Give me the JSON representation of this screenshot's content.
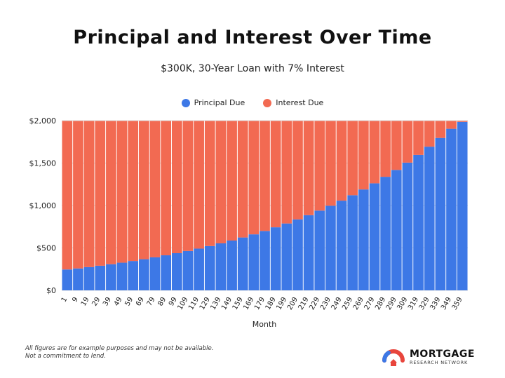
{
  "title": "Principal and Interest Over Time",
  "subtitle": "$300K, 30-Year Loan with 7% Interest",
  "footnote": {
    "line1": "All figures are for example purposes and may not be available.",
    "line2": "Not a commitment to lend."
  },
  "logo": {
    "main": "MORTGAGE",
    "sub": "RESEARCH NETWORK"
  },
  "colors": {
    "principal": "#3d78e6",
    "interest": "#f26a52",
    "grid": "#d8d8d8"
  },
  "chart_data": {
    "type": "bar",
    "stacked": true,
    "title": "Principal and Interest Over Time",
    "subtitle": "$300K, 30-Year Loan with 7% Interest",
    "xlabel": "Month",
    "ylabel": "",
    "ylim": [
      0,
      2000
    ],
    "y_ticks": [
      "$0",
      "$500",
      "$1,000",
      "$1,500",
      "$2,000"
    ],
    "y_tick_values": [
      0,
      500,
      1000,
      1500,
      2000
    ],
    "x_tick_labels": [
      "1",
      "9",
      "19",
      "29",
      "39",
      "49",
      "59",
      "69",
      "79",
      "89",
      "99",
      "109",
      "119",
      "129",
      "139",
      "149",
      "159",
      "169",
      "179",
      "189",
      "199",
      "209",
      "219",
      "229",
      "239",
      "249",
      "259",
      "269",
      "279",
      "289",
      "299",
      "309",
      "319",
      "329",
      "339",
      "349",
      "359"
    ],
    "legend_position": "top-center",
    "categories": [
      "1",
      "9",
      "19",
      "29",
      "39",
      "49",
      "59",
      "69",
      "79",
      "89",
      "99",
      "109",
      "119",
      "129",
      "139",
      "149",
      "159",
      "169",
      "179",
      "189",
      "199",
      "209",
      "219",
      "229",
      "239",
      "249",
      "259",
      "269",
      "279",
      "289",
      "299",
      "309",
      "319",
      "329",
      "339",
      "349",
      "359"
    ],
    "series": [
      {
        "name": "Principal Due",
        "values": [
          246,
          258,
          274,
          290,
          308,
          326,
          346,
          367,
          389,
          413,
          438,
          464,
          492,
          522,
          554,
          587,
          623,
          660,
          700,
          743,
          788,
          836,
          886,
          940,
          997,
          1057,
          1121,
          1189,
          1261,
          1338,
          1419,
          1505,
          1596,
          1693,
          1796,
          1904,
          1985
        ]
      },
      {
        "name": "Interest Due",
        "values": [
          1750,
          1738,
          1722,
          1706,
          1688,
          1670,
          1650,
          1629,
          1607,
          1583,
          1558,
          1532,
          1504,
          1474,
          1442,
          1409,
          1373,
          1336,
          1296,
          1253,
          1208,
          1160,
          1110,
          1056,
          999,
          939,
          875,
          807,
          735,
          658,
          577,
          491,
          400,
          303,
          200,
          92,
          11
        ]
      }
    ]
  }
}
